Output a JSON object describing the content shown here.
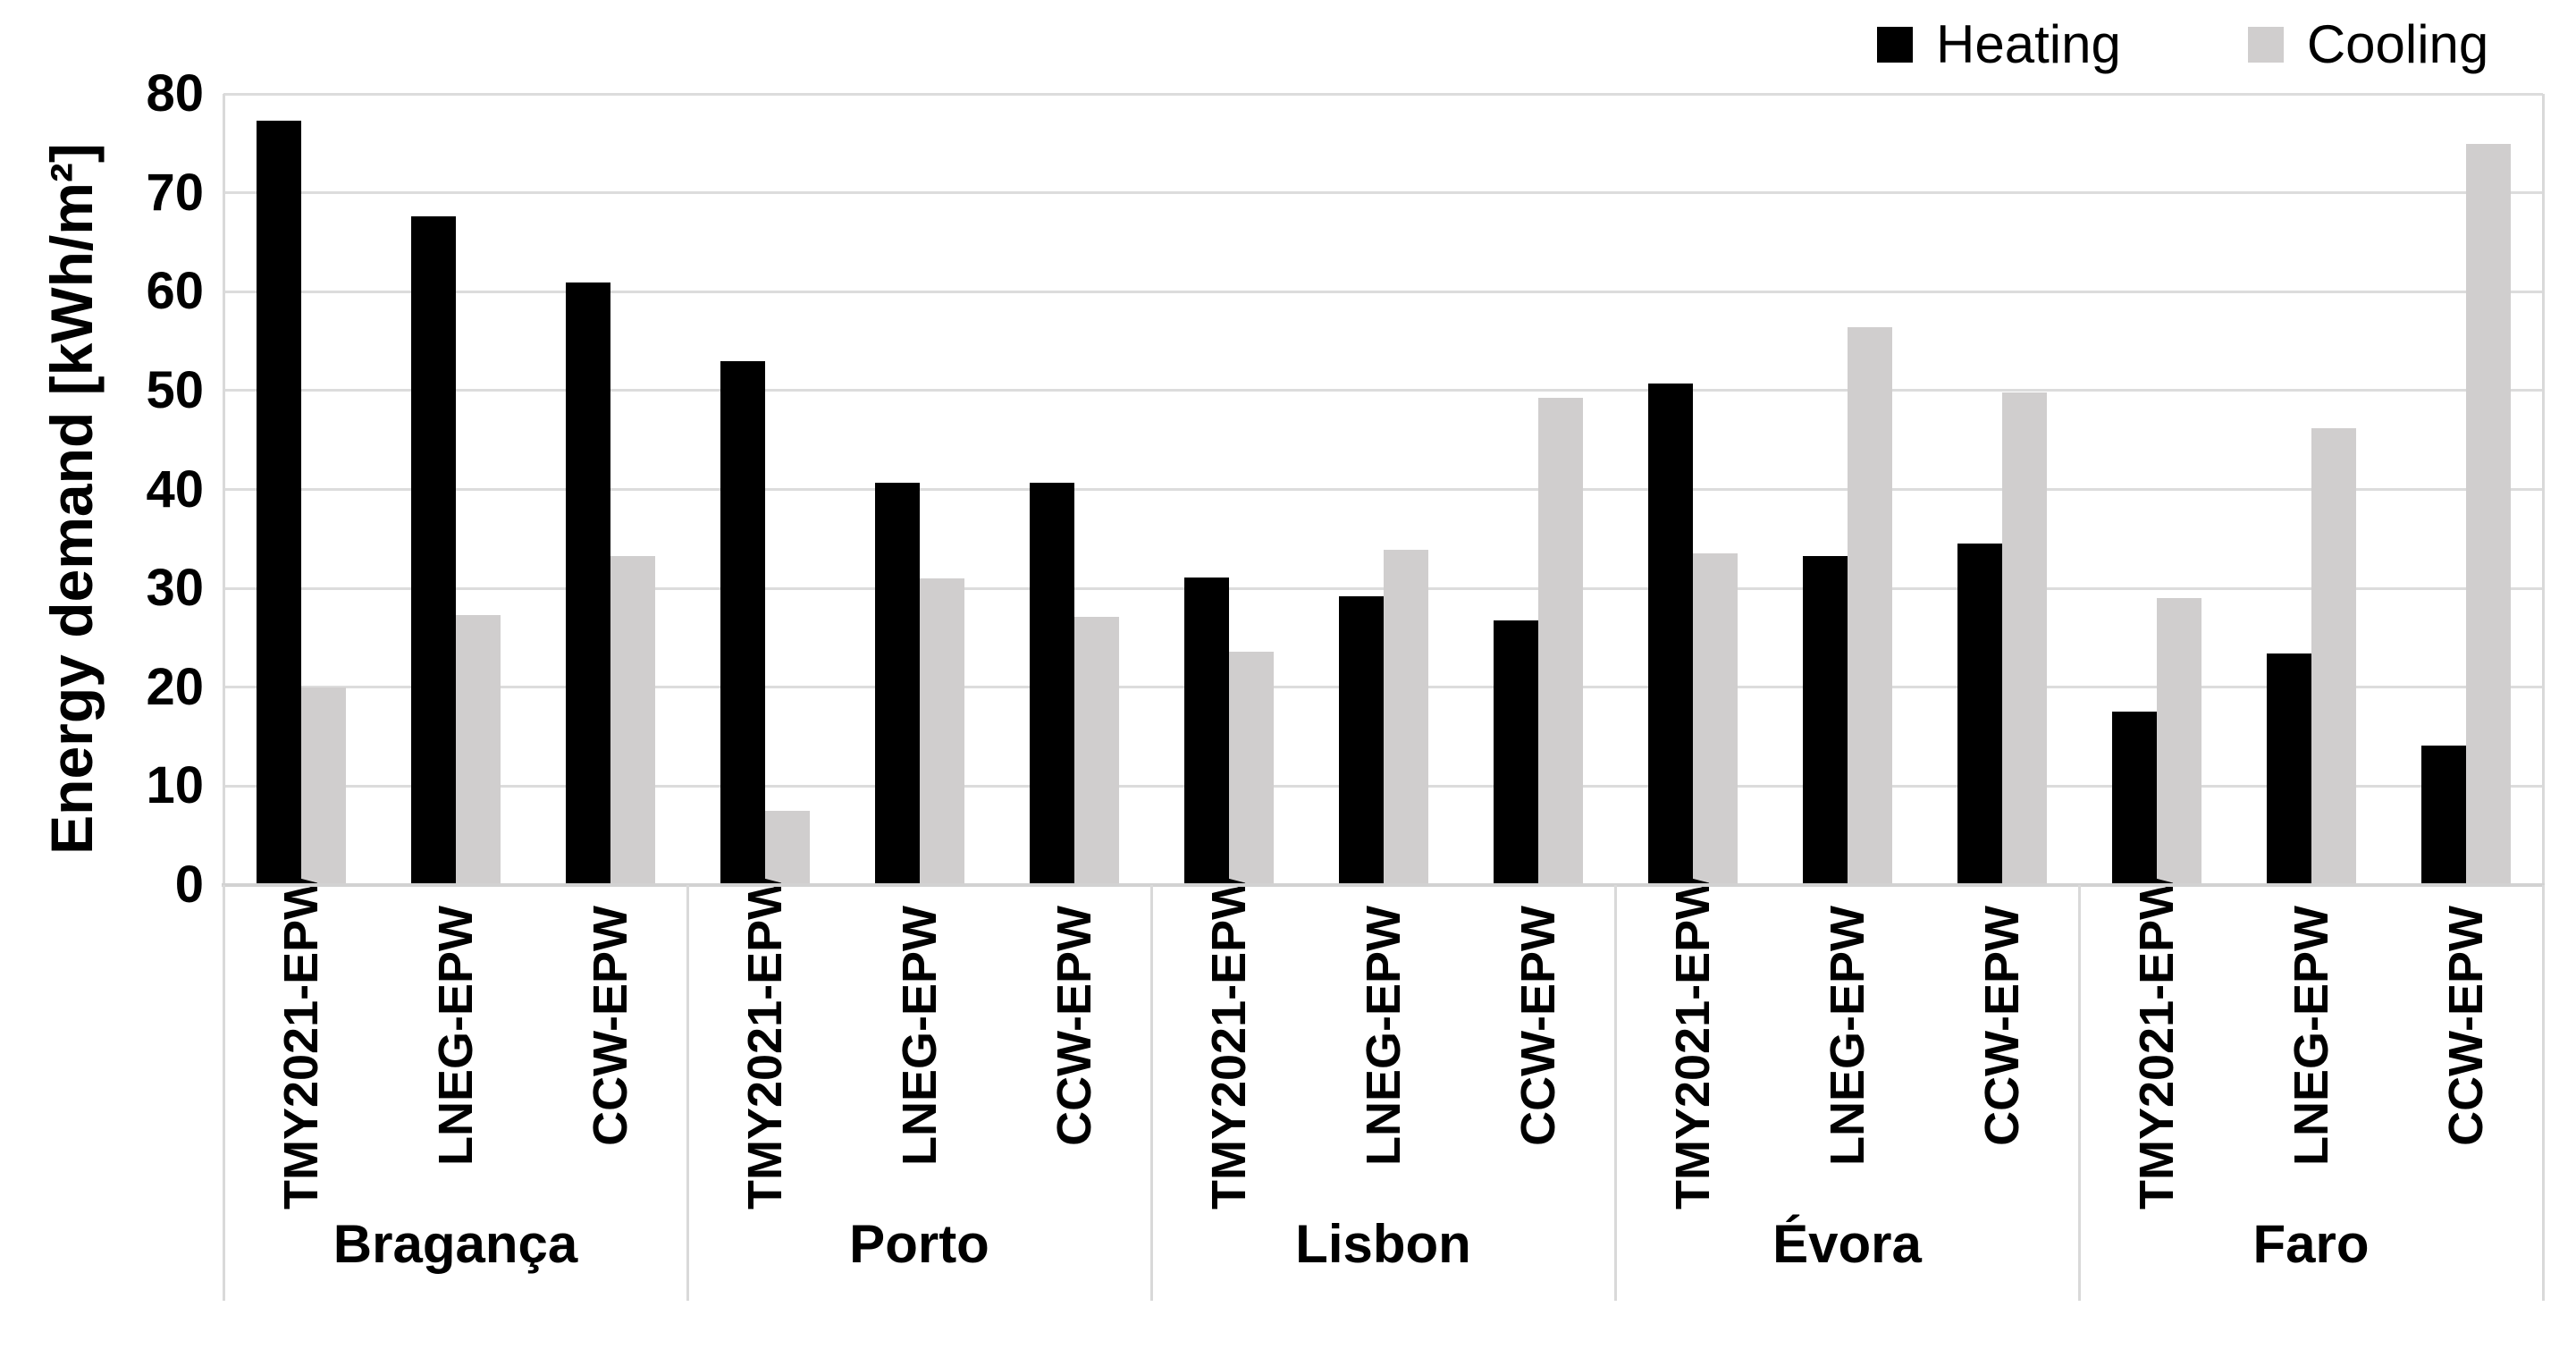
{
  "chart_data": {
    "type": "bar",
    "title": "",
    "ylabel": "Energy demand [kWh/m²]",
    "xlabel": "",
    "ylim": [
      0,
      80
    ],
    "ytick_step": 10,
    "yticks": [
      0,
      10,
      20,
      30,
      40,
      50,
      60,
      70,
      80
    ],
    "grid": true,
    "legend_position": "top-right",
    "legend": [
      "Heating",
      "Cooling"
    ],
    "series_colors": {
      "heating": "#000000",
      "cooling": "#d0cece"
    },
    "gridline_color": "#dcdcdc",
    "axis_color": "#d2d2d2",
    "categories_per_group": [
      "TMY2021-EPW",
      "LNEG-EPW",
      "CCW-EPW"
    ],
    "groups": [
      {
        "city": "Bragança",
        "categories": [
          "TMY2021-EPW",
          "LNEG-EPW",
          "CCW-EPW"
        ],
        "heating": [
          77.3,
          67.6,
          60.9
        ],
        "cooling": [
          20.0,
          27.3,
          33.3
        ]
      },
      {
        "city": "Porto",
        "categories": [
          "TMY2021-EPW",
          "LNEG-EPW",
          "CCW-EPW"
        ],
        "heating": [
          53.0,
          40.7,
          40.7
        ],
        "cooling": [
          7.5,
          31.0,
          27.1
        ]
      },
      {
        "city": "Lisbon",
        "categories": [
          "TMY2021-EPW",
          "LNEG-EPW",
          "CCW-EPW"
        ],
        "heating": [
          31.1,
          29.2,
          26.8
        ],
        "cooling": [
          23.6,
          33.9,
          49.3
        ]
      },
      {
        "city": "Évora",
        "categories": [
          "TMY2021-EPW",
          "LNEG-EPW",
          "CCW-EPW"
        ],
        "heating": [
          50.7,
          33.3,
          34.5
        ],
        "cooling": [
          33.5,
          56.4,
          49.8
        ]
      },
      {
        "city": "Faro",
        "categories": [
          "TMY2021-EPW",
          "LNEG-EPW",
          "CCW-EPW"
        ],
        "heating": [
          17.5,
          23.4,
          14.1
        ],
        "cooling": [
          29.0,
          46.2,
          74.9
        ]
      }
    ]
  }
}
